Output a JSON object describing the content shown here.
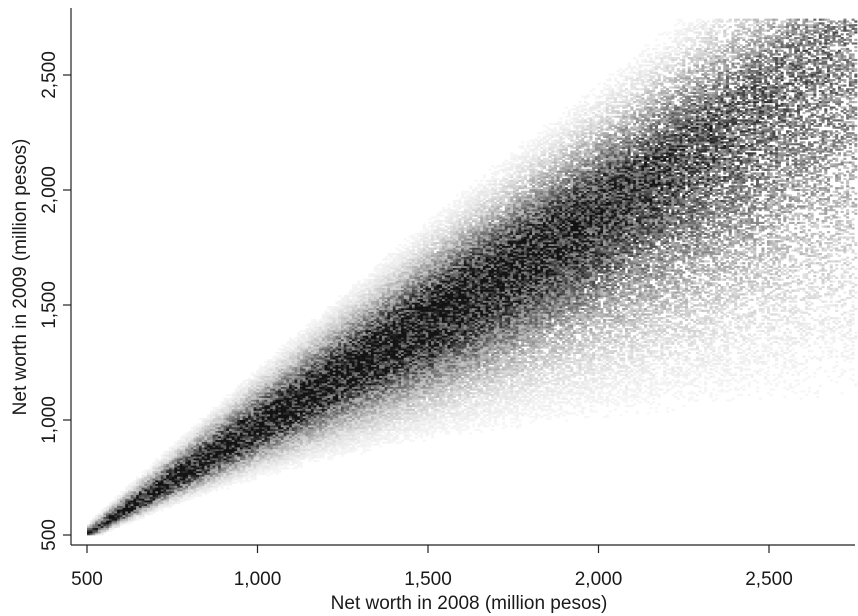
{
  "chart_data": {
    "type": "heatmap",
    "title": "",
    "xlabel": "Net worth in 2008 (million pesos)",
    "ylabel": "Net worth in 2009 (million pesos)",
    "xlim": [
      500,
      2750
    ],
    "ylim": [
      500,
      2750
    ],
    "x_ticks": [
      500,
      1000,
      1500,
      2000,
      2500
    ],
    "x_tick_labels": [
      "500",
      "1,000",
      "1,500",
      "2,000",
      "2,500"
    ],
    "y_ticks": [
      500,
      1000,
      1500,
      2000,
      2500
    ],
    "y_tick_labels": [
      "500",
      "1,000",
      "1,500",
      "2,000",
      "2,500"
    ],
    "grid": false,
    "legend": "none",
    "colormap": "grayscale (white = low density, black = high density)",
    "density_ridge": {
      "x": [
        500,
        750,
        1000,
        1250,
        1500,
        1750,
        2000,
        2250,
        2500,
        2750
      ],
      "y": [
        500,
        735,
        970,
        1205,
        1440,
        1680,
        1925,
        2180,
        2440,
        2700
      ]
    },
    "colors": {
      "ink": "#111111",
      "background": "#ffffff"
    }
  }
}
